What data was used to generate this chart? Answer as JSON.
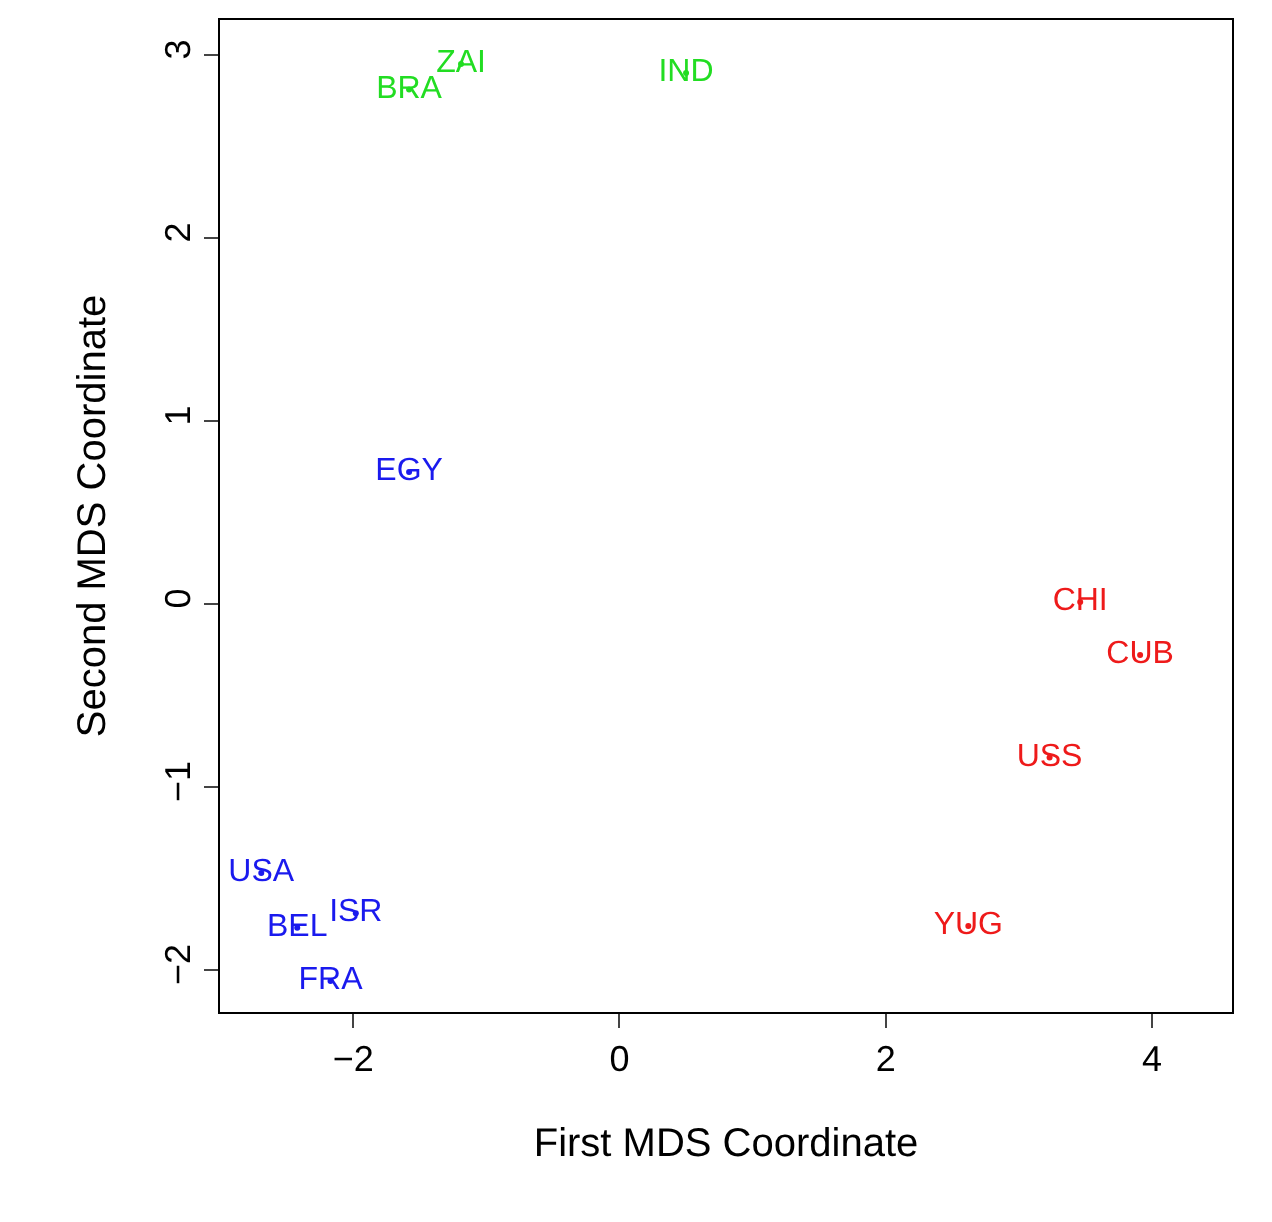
{
  "chart_data": {
    "type": "scatter",
    "xlabel": "First MDS Coordinate",
    "ylabel": "Second MDS Coordinate",
    "xlim": [
      -3,
      4.6
    ],
    "ylim": [
      -2.23,
      3.19
    ],
    "xticks": [
      -2,
      0,
      2,
      4
    ],
    "yticks": [
      -2,
      -1,
      0,
      1,
      2,
      3
    ],
    "marker": "none",
    "series": [
      {
        "color": "#22dd22",
        "x": [
          -1.19,
          -1.58,
          0.5
        ],
        "values": [
          2.95,
          2.81,
          2.9
        ],
        "value_labels": [
          "ZAI",
          "BRA",
          "IND"
        ]
      },
      {
        "color": "#1a1aee",
        "x": [
          -1.58,
          -2.69,
          -2.42,
          -1.98,
          -2.17
        ],
        "values": [
          0.72,
          -1.47,
          -1.77,
          -1.69,
          -2.06
        ],
        "value_labels": [
          "EGY",
          "USA",
          "BEL",
          "ISR",
          "FRA"
        ]
      },
      {
        "color": "#ee1a1a",
        "x": [
          3.46,
          3.91,
          3.23,
          2.62
        ],
        "values": [
          0.01,
          -0.28,
          -0.84,
          -1.76
        ],
        "value_labels": [
          "CHI",
          "CUB",
          "USS",
          "YUG"
        ]
      }
    ]
  }
}
